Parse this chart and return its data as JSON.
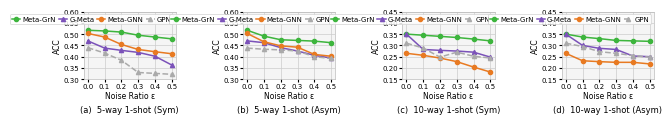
{
  "x": [
    0.0,
    0.1,
    0.2,
    0.3,
    0.4,
    0.5
  ],
  "subplots": [
    {
      "title": "(a)  5-way 1-shot (Sym)",
      "ylabel": "ACC",
      "xlabel": "Noise Ratio ε",
      "ylim": [
        0.3,
        0.6
      ],
      "yticks": [
        0.3,
        0.35,
        0.4,
        0.45,
        0.5,
        0.55,
        0.6
      ],
      "series": [
        {
          "label": "Meta-GrN",
          "color": "#3db53d",
          "marker": "o",
          "linestyle": "-",
          "data": [
            0.517,
            0.514,
            0.509,
            0.495,
            0.487,
            0.479
          ]
        },
        {
          "label": "G-Meta",
          "color": "#7b52b9",
          "marker": "^",
          "linestyle": "-",
          "data": [
            0.47,
            0.438,
            0.428,
            0.419,
            0.402,
            0.363
          ]
        },
        {
          "label": "Meta-GNN",
          "color": "#e87a22",
          "marker": "o",
          "linestyle": "-",
          "data": [
            0.503,
            0.487,
            0.454,
            0.432,
            0.422,
            0.413
          ]
        },
        {
          "label": "GPN",
          "color": "#aaaaaa",
          "marker": "^",
          "linestyle": "--",
          "data": [
            0.44,
            0.416,
            0.384,
            0.33,
            0.326,
            0.322
          ]
        }
      ]
    },
    {
      "title": "(b)  5-way 1-shot (Asym)",
      "ylabel": "ACC",
      "xlabel": "Noise Ratio ε",
      "ylim": [
        0.3,
        0.6
      ],
      "yticks": [
        0.3,
        0.35,
        0.4,
        0.45,
        0.5,
        0.55,
        0.6
      ],
      "series": [
        {
          "label": "Meta-GrN",
          "color": "#3db53d",
          "marker": "o",
          "linestyle": "-",
          "data": [
            0.517,
            0.491,
            0.475,
            0.472,
            0.469,
            0.462
          ]
        },
        {
          "label": "G-Meta",
          "color": "#7b52b9",
          "marker": "^",
          "linestyle": "-",
          "data": [
            0.47,
            0.462,
            0.44,
            0.425,
            0.406,
            0.394
          ]
        },
        {
          "label": "Meta-GNN",
          "color": "#e87a22",
          "marker": "o",
          "linestyle": "-",
          "data": [
            0.503,
            0.466,
            0.448,
            0.442,
            0.41,
            0.402
          ]
        },
        {
          "label": "GPN",
          "color": "#aaaaaa",
          "marker": "^",
          "linestyle": "--",
          "data": [
            0.438,
            0.433,
            0.43,
            0.425,
            0.4,
            0.392
          ]
        }
      ]
    },
    {
      "title": "(c)  10-way 1-shot (Sym)",
      "ylabel": "ACC",
      "xlabel": "Noise Ratio ε",
      "ylim": [
        0.15,
        0.45
      ],
      "yticks": [
        0.15,
        0.2,
        0.25,
        0.3,
        0.35,
        0.4,
        0.45
      ],
      "series": [
        {
          "label": "Meta-GrN",
          "color": "#3db53d",
          "marker": "o",
          "linestyle": "-",
          "data": [
            0.35,
            0.345,
            0.34,
            0.335,
            0.328,
            0.32
          ]
        },
        {
          "label": "G-Meta",
          "color": "#7b52b9",
          "marker": "^",
          "linestyle": "-",
          "data": [
            0.35,
            0.282,
            0.278,
            0.275,
            0.27,
            0.248
          ]
        },
        {
          "label": "Meta-GNN",
          "color": "#e87a22",
          "marker": "o",
          "linestyle": "-",
          "data": [
            0.265,
            0.256,
            0.244,
            0.228,
            0.204,
            0.182
          ]
        },
        {
          "label": "GPN",
          "color": "#aaaaaa",
          "marker": "^",
          "linestyle": "--",
          "data": [
            0.31,
            0.288,
            0.248,
            0.27,
            0.252,
            0.244
          ]
        }
      ]
    },
    {
      "title": "(d)  10-way 1-shot (Asym)",
      "ylabel": "ACC",
      "xlabel": "Noise Ratio ε",
      "ylim": [
        0.15,
        0.45
      ],
      "yticks": [
        0.15,
        0.2,
        0.25,
        0.3,
        0.35,
        0.4,
        0.45
      ],
      "series": [
        {
          "label": "Meta-GrN",
          "color": "#3db53d",
          "marker": "o",
          "linestyle": "-",
          "data": [
            0.35,
            0.337,
            0.33,
            0.322,
            0.32,
            0.318
          ]
        },
        {
          "label": "G-Meta",
          "color": "#7b52b9",
          "marker": "^",
          "linestyle": "-",
          "data": [
            0.35,
            0.3,
            0.287,
            0.282,
            0.253,
            0.25
          ]
        },
        {
          "label": "Meta-GNN",
          "color": "#e87a22",
          "marker": "o",
          "linestyle": "-",
          "data": [
            0.265,
            0.232,
            0.228,
            0.225,
            0.225,
            0.218
          ]
        },
        {
          "label": "GPN",
          "color": "#aaaaaa",
          "marker": "^",
          "linestyle": "--",
          "data": [
            0.31,
            0.295,
            0.272,
            0.265,
            0.255,
            0.248
          ]
        }
      ]
    }
  ],
  "legend_fontsize": 5.0,
  "label_fontsize": 5.5,
  "tick_fontsize": 5.0,
  "title_fontsize": 6.0,
  "linewidth": 1.1,
  "markersize": 3.0,
  "grid_color": "#cccccc",
  "bg_color": "#f5f5f5"
}
